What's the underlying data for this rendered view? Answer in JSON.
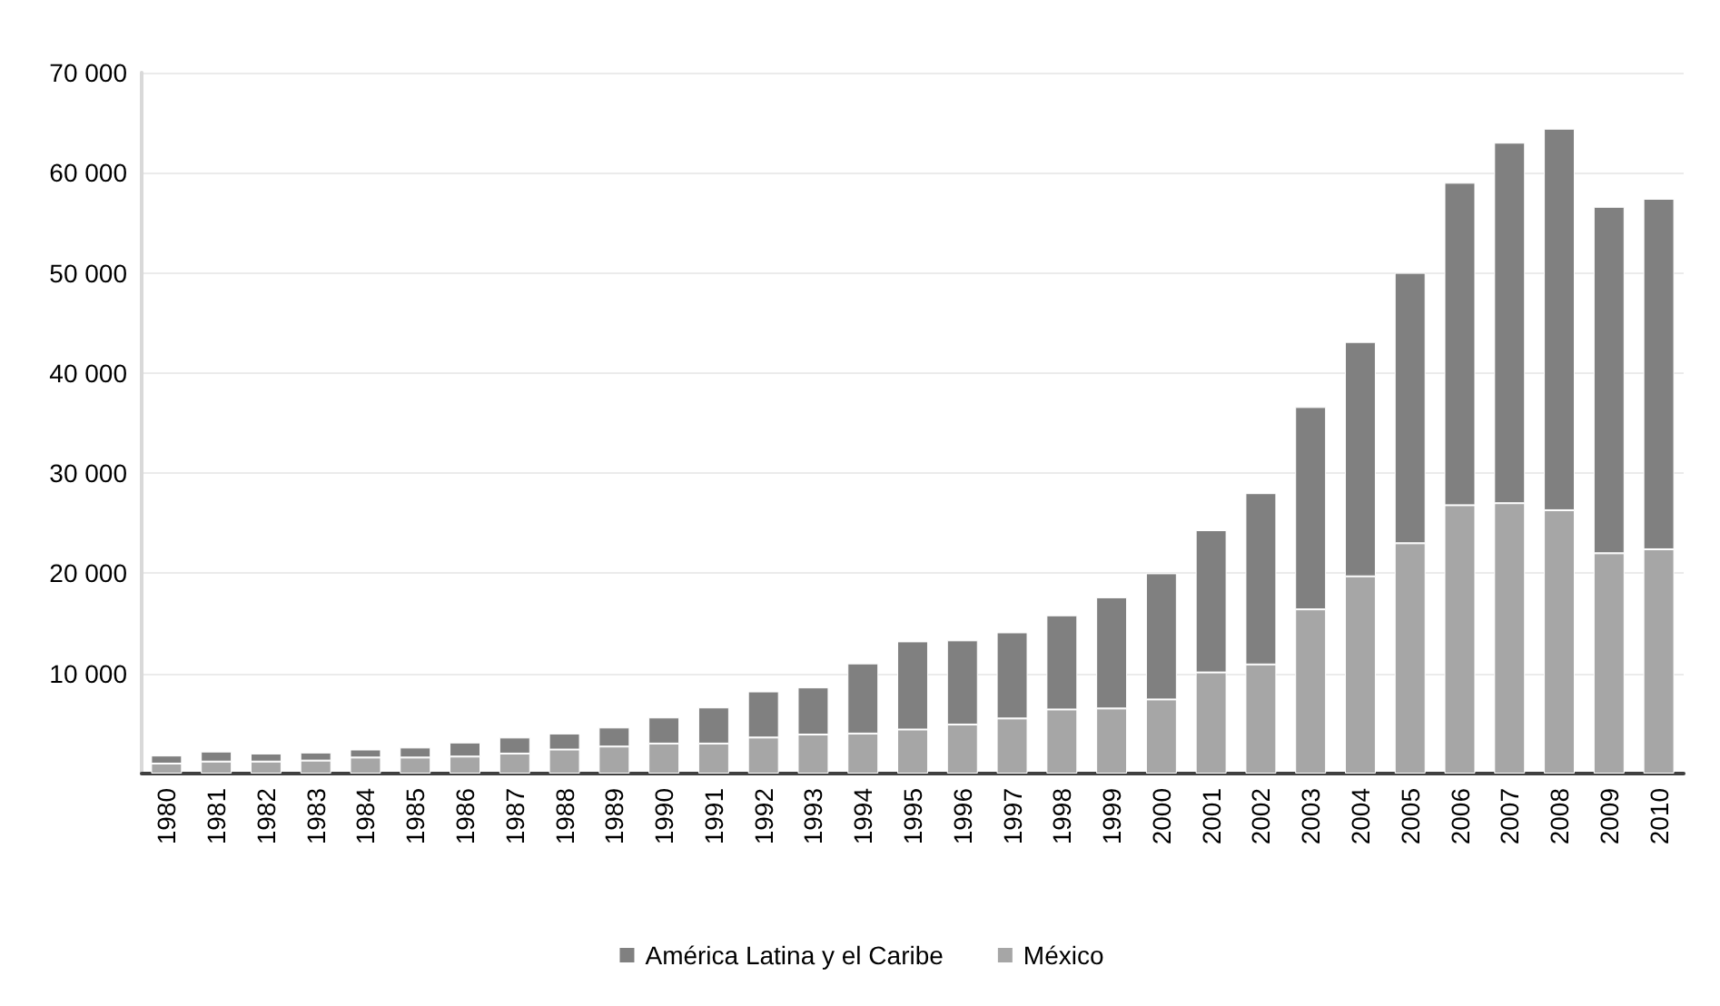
{
  "chart_data": {
    "type": "bar",
    "stacked": true,
    "categories": [
      "1980",
      "1981",
      "1982",
      "1983",
      "1984",
      "1985",
      "1986",
      "1987",
      "1988",
      "1989",
      "1990",
      "1991",
      "1992",
      "1993",
      "1994",
      "1995",
      "1996",
      "1997",
      "1998",
      "1999",
      "2000",
      "2001",
      "2002",
      "2003",
      "2004",
      "2005",
      "2006",
      "2007",
      "2008",
      "2009",
      "2010"
    ],
    "series": [
      {
        "name": "México",
        "color": "#a6a6a6",
        "values": [
          1000,
          1200,
          1200,
          1300,
          1600,
          1600,
          1700,
          2000,
          2400,
          2700,
          3000,
          3000,
          3600,
          3900,
          4000,
          4400,
          4900,
          5500,
          6400,
          6500,
          7400,
          10100,
          10900,
          16400,
          19700,
          23000,
          26800,
          27000,
          26300,
          22000,
          22400
        ]
      },
      {
        "name": "América Latina y el Caribe",
        "color": "#808080",
        "values": [
          800,
          1000,
          800,
          800,
          800,
          1000,
          1400,
          1600,
          1600,
          1900,
          2600,
          3600,
          4600,
          4700,
          7000,
          8800,
          8400,
          8600,
          9400,
          11100,
          12600,
          14200,
          17100,
          20200,
          23400,
          27000,
          32200,
          36000,
          38100,
          34600,
          35000
        ]
      }
    ],
    "ylim": [
      0,
      70000
    ],
    "yticks": [
      {
        "value": 10000,
        "label": "10 000"
      },
      {
        "value": 20000,
        "label": "20 000"
      },
      {
        "value": 30000,
        "label": "30 000"
      },
      {
        "value": 40000,
        "label": "40 000"
      },
      {
        "value": 50000,
        "label": "50 000"
      },
      {
        "value": 60000,
        "label": "60 000"
      },
      {
        "value": 70000,
        "label": "70 000"
      }
    ],
    "grid": "y",
    "legend": "bottom"
  }
}
